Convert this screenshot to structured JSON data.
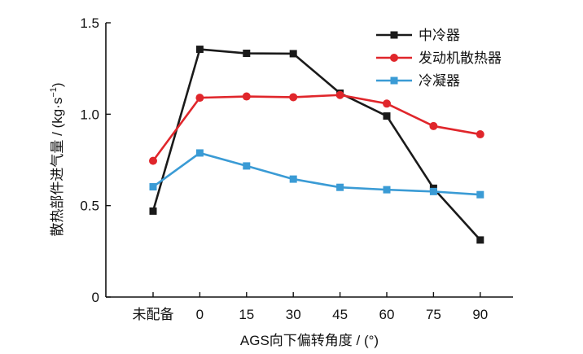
{
  "chart_data": {
    "type": "line",
    "categories": [
      "未配备",
      "0",
      "15",
      "30",
      "45",
      "60",
      "75",
      "90"
    ],
    "xlabel": "AGS向下偏转角度 / (°)",
    "ylabel_main": "散热部件进气量 / (kg·s",
    "ylabel_sup": "−1",
    "ylabel_close": ")",
    "ylim": [
      0,
      1.5
    ],
    "yticks": [
      0,
      0.5,
      1.0,
      1.5
    ],
    "ytick_labels": [
      "0",
      "0.5",
      "1.0",
      "1.5"
    ],
    "grid": false,
    "legend_position": "top-right",
    "series": [
      {
        "name": "中冷器",
        "color": "#1a1a1a",
        "marker": "square",
        "values": [
          0.47,
          1.355,
          1.333,
          1.331,
          1.115,
          0.99,
          0.595,
          0.312
        ]
      },
      {
        "name": "发动机散热器",
        "color": "#e0262b",
        "marker": "circle",
        "values": [
          0.745,
          1.09,
          1.097,
          1.093,
          1.105,
          1.058,
          0.935,
          0.89
        ]
      },
      {
        "name": "冷凝器",
        "color": "#3a9bd5",
        "marker": "square",
        "values": [
          0.603,
          0.788,
          0.717,
          0.645,
          0.6,
          0.587,
          0.577,
          0.56
        ]
      }
    ]
  }
}
